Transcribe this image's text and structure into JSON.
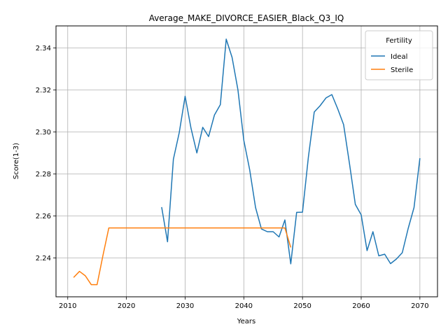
{
  "chart_data": {
    "type": "line",
    "title": "Average_MAKE_DIVORCE_EASIER_Black_Q3_IQ",
    "xlabel": "Years",
    "ylabel": "Score(1-3)",
    "xlim": [
      2008,
      2073
    ],
    "ylim": [
      2.2215,
      2.3505
    ],
    "xticks": [
      2010,
      2020,
      2030,
      2040,
      2050,
      2060,
      2070
    ],
    "yticks": [
      2.24,
      2.26,
      2.28,
      2.3,
      2.32,
      2.34
    ],
    "grid": true,
    "legend": {
      "title": "Fertility",
      "position": "top-right"
    },
    "series": [
      {
        "name": "Ideal",
        "color": "#1f77b4",
        "x": [
          2026,
          2027,
          2028,
          2029,
          2030,
          2031,
          2032,
          2033,
          2034,
          2035,
          2036,
          2037,
          2038,
          2039,
          2040,
          2041,
          2042,
          2043,
          2044,
          2045,
          2046,
          2047,
          2048,
          2049,
          2050,
          2051,
          2052,
          2053,
          2054,
          2055,
          2056,
          2057,
          2058,
          2059,
          2060,
          2061,
          2062,
          2063,
          2064,
          2065,
          2066,
          2067,
          2068,
          2069,
          2070
        ],
        "y": [
          2.2642,
          2.2477,
          2.287,
          2.2997,
          2.317,
          2.3018,
          2.29,
          2.3022,
          2.2978,
          2.3081,
          2.313,
          2.3442,
          2.3355,
          2.32,
          2.296,
          2.282,
          2.264,
          2.2538,
          2.2525,
          2.2525,
          2.25,
          2.2581,
          2.2372,
          2.2617,
          2.2618,
          2.288,
          2.3095,
          2.3125,
          2.3162,
          2.3178,
          2.311,
          2.3035,
          2.285,
          2.2655,
          2.2605,
          2.2435,
          2.2525,
          2.241,
          2.2418,
          2.2373,
          2.2395,
          2.2425,
          2.254,
          2.264,
          2.2875
        ]
      },
      {
        "name": "Sterile",
        "color": "#ff7f0e",
        "x": [
          2011,
          2012,
          2013,
          2014,
          2015,
          2016,
          2017,
          2018,
          2019,
          2020,
          2021,
          2022,
          2023,
          2024,
          2025,
          2026,
          2027,
          2028,
          2029,
          2030,
          2031,
          2032,
          2033,
          2034,
          2035,
          2036,
          2037,
          2038,
          2039,
          2040,
          2041,
          2042,
          2043,
          2044,
          2045,
          2046,
          2047,
          2048
        ],
        "y": [
          2.2307,
          2.2336,
          2.2315,
          2.2273,
          2.2273,
          2.2412,
          2.2543,
          2.2543,
          2.2543,
          2.2543,
          2.2543,
          2.2543,
          2.2543,
          2.2543,
          2.2543,
          2.2543,
          2.2543,
          2.2543,
          2.2543,
          2.2543,
          2.2543,
          2.2543,
          2.2543,
          2.2543,
          2.2543,
          2.2543,
          2.2543,
          2.2543,
          2.2543,
          2.2543,
          2.2543,
          2.2543,
          2.2543,
          2.2543,
          2.2543,
          2.2543,
          2.2543,
          2.245
        ]
      }
    ]
  }
}
